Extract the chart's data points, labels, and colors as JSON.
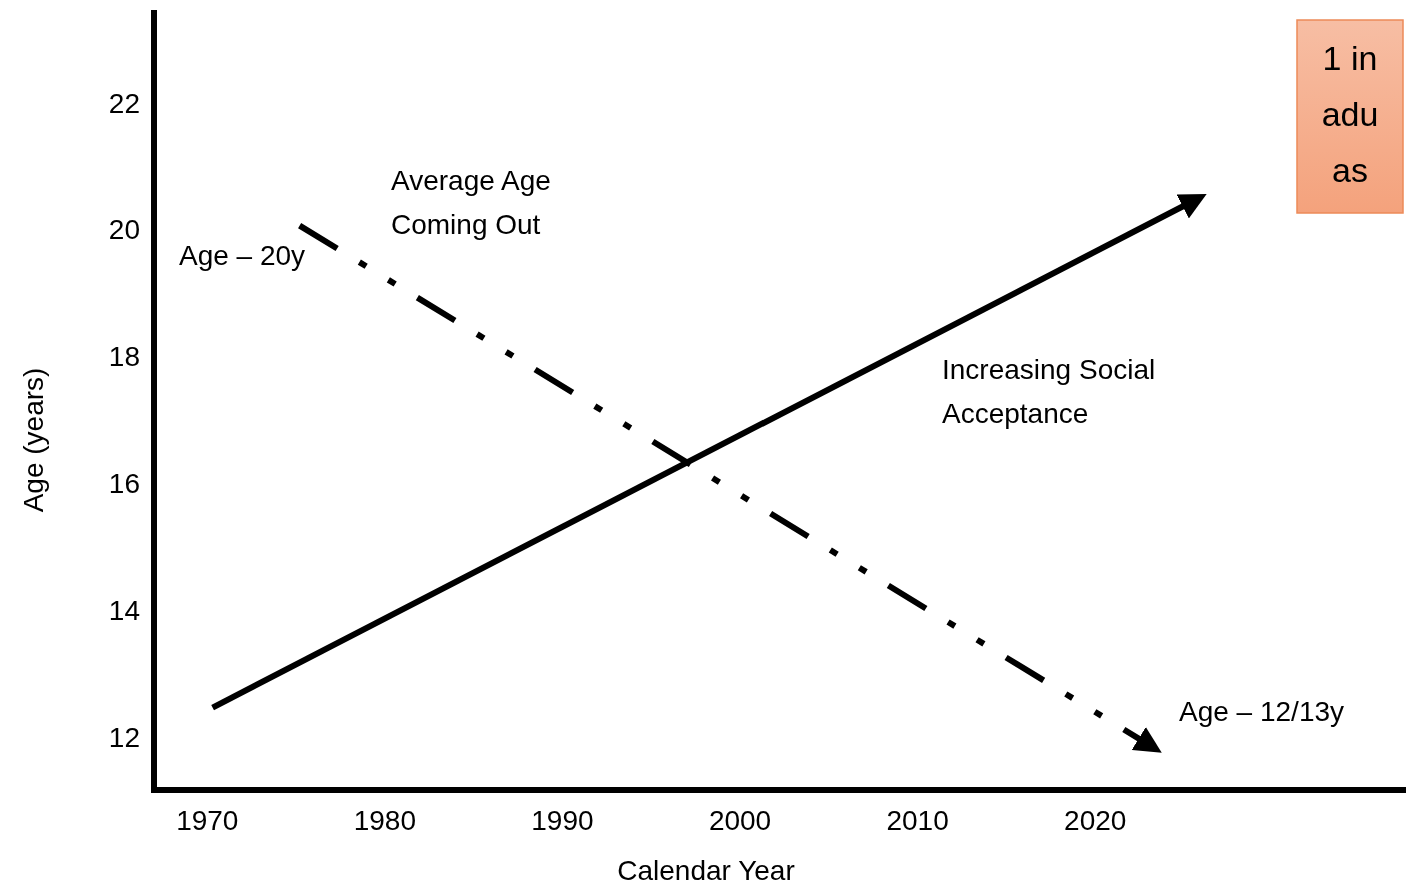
{
  "chart_data": {
    "type": "line",
    "xlabel": "Calendar Year",
    "ylabel": "Age (years)",
    "xlim": [
      1967,
      2037.5
    ],
    "ylim": [
      11.2,
      23.5
    ],
    "xticks": [
      1970,
      1980,
      1990,
      2000,
      2010,
      2020
    ],
    "yticks": [
      12,
      14,
      16,
      18,
      20,
      22
    ],
    "grid": false,
    "marker": "none",
    "series": [
      {
        "color": "#000000",
        "x": [
          1970.3,
          2025.6
        ],
        "values": [
          12.5,
          20.5
        ],
        "line_style": "solid"
      },
      {
        "color": "#000000",
        "x": [
          1975.2,
          2023.1
        ],
        "values": [
          20.1,
          11.9
        ],
        "line_style": "dashed"
      }
    ],
    "annotations": [
      "Age – 20y",
      "Average Age\nComing Out",
      "Increasing Social\nAcceptance",
      "Age – 12/13y",
      "1 in\nadu\nas"
    ]
  }
}
